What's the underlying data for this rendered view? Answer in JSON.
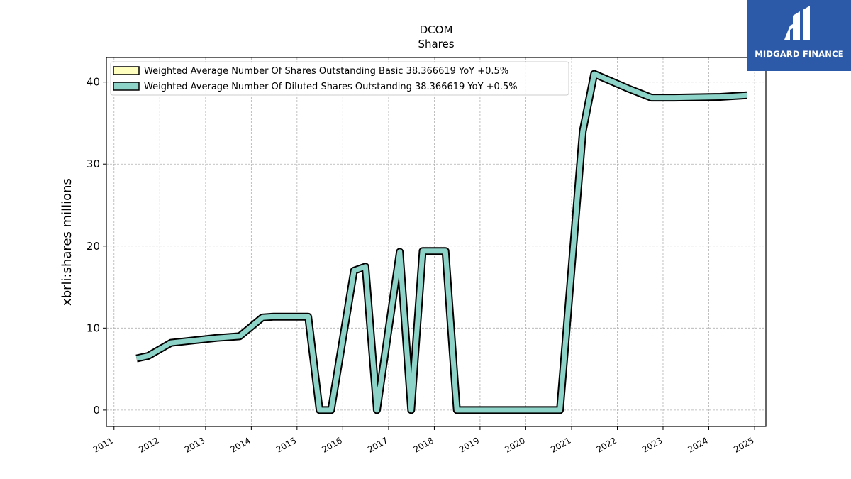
{
  "brand": {
    "name": "MIDGARD FINANCE",
    "bg_color": "#2d5aa8"
  },
  "chart_data": {
    "type": "line",
    "title": "DCOM",
    "subtitle": "Shares",
    "ylabel": "xbrli:shares millions",
    "xlabel": "",
    "xlim": [
      "2010-11-01",
      "2025-04-01"
    ],
    "ylim": [
      -2,
      43
    ],
    "x_ticks": [
      "2011",
      "2012",
      "2013",
      "2014",
      "2015",
      "2016",
      "2017",
      "2018",
      "2019",
      "2020",
      "2021",
      "2022",
      "2023",
      "2024",
      "2025"
    ],
    "y_ticks": [
      0,
      10,
      20,
      30,
      40
    ],
    "grid": true,
    "legend_position": "top-left",
    "series": [
      {
        "name": "Weighted Average Number Of Shares Outstanding Basic  38.366619 YoY +0.5%",
        "color": "#ffffc0",
        "x": [
          "2011-06-30",
          "2011-09-30",
          "2012-03-31",
          "2013-03-31",
          "2013-09-30",
          "2014-03-31",
          "2014-06-30",
          "2015-03-31",
          "2015-06-30",
          "2015-09-30",
          "2016-03-31",
          "2016-06-30",
          "2016-09-30",
          "2017-03-31",
          "2017-06-30",
          "2017-09-30",
          "2018-03-31",
          "2018-06-30",
          "2020-09-30",
          "2021-03-31",
          "2021-06-30",
          "2022-03-31",
          "2022-09-30",
          "2023-03-31",
          "2024-03-31",
          "2024-10-31"
        ],
        "values": [
          6.3,
          6.6,
          8.2,
          8.8,
          9.0,
          11.3,
          11.4,
          11.4,
          0.0,
          0.0,
          17.0,
          17.5,
          0.0,
          19.3,
          0.0,
          19.4,
          19.4,
          0.0,
          0.0,
          34.0,
          41.0,
          39.2,
          38.1,
          38.1,
          38.2,
          38.4
        ]
      },
      {
        "name": "Weighted Average Number Of Diluted Shares Outstanding  38.366619 YoY +0.5%",
        "color": "#8dd3c7",
        "x": [
          "2011-06-30",
          "2011-09-30",
          "2012-03-31",
          "2013-03-31",
          "2013-09-30",
          "2014-03-31",
          "2014-06-30",
          "2015-03-31",
          "2015-06-30",
          "2015-09-30",
          "2016-03-31",
          "2016-06-30",
          "2016-09-30",
          "2017-03-31",
          "2017-06-30",
          "2017-09-30",
          "2018-03-31",
          "2018-06-30",
          "2020-09-30",
          "2021-03-31",
          "2021-06-30",
          "2022-03-31",
          "2022-09-30",
          "2023-03-31",
          "2024-03-31",
          "2024-10-31"
        ],
        "values": [
          6.3,
          6.6,
          8.2,
          8.8,
          9.0,
          11.3,
          11.4,
          11.4,
          0.0,
          0.0,
          17.0,
          17.5,
          0.0,
          19.3,
          0.0,
          19.4,
          19.4,
          0.0,
          0.0,
          34.0,
          41.0,
          39.2,
          38.1,
          38.1,
          38.2,
          38.4
        ]
      }
    ]
  }
}
